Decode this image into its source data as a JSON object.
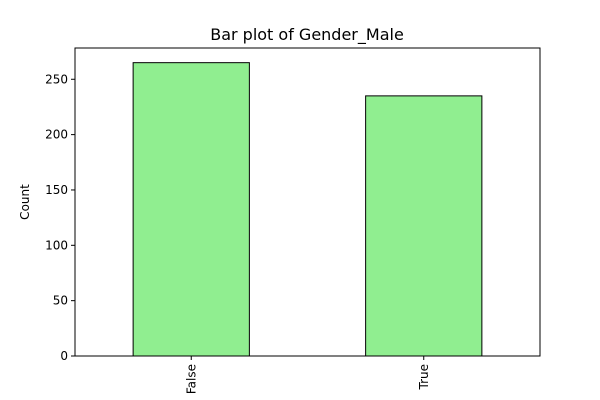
{
  "chart_data": {
    "type": "bar",
    "title": "Bar plot of Gender_Male",
    "xlabel": "",
    "ylabel": "Count",
    "categories": [
      "False",
      "True"
    ],
    "values": [
      265,
      235
    ],
    "ylim": [
      0,
      278.25
    ],
    "yticks": [
      0,
      50,
      100,
      150,
      200,
      250
    ],
    "bar_color": "#90ee90",
    "edge_color": "#000000",
    "grid": false,
    "legend": "none"
  }
}
